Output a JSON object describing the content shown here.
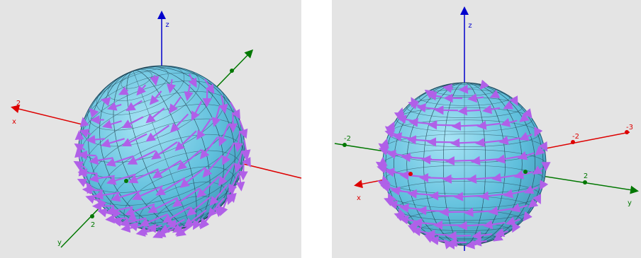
{
  "panels": [
    {
      "labels": [
        "z",
        "2",
        "x",
        "2",
        "y"
      ]
    },
    {
      "labels": [
        "z",
        "-2",
        "x",
        "-2",
        "-3",
        "2",
        "y"
      ]
    }
  ]
}
